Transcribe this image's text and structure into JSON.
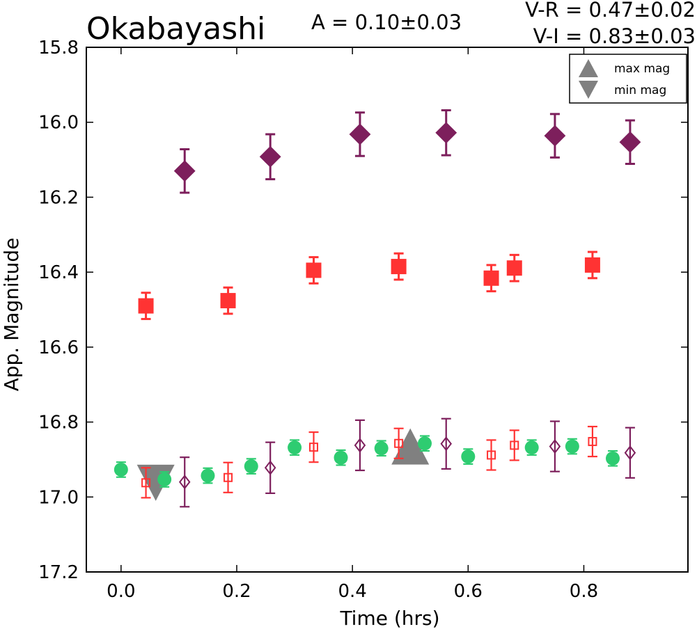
{
  "chart_data": {
    "type": "scatter",
    "title": "Okabayashi",
    "amplitude_text": "A  = 0.10±0.03",
    "color_index_texts": [
      "V-R = 0.47±0.02",
      "V-I  = 0.83±0.03"
    ],
    "xlabel": "Time (hrs)",
    "ylabel": "App. Magnitude",
    "xlim": [
      -0.06,
      0.98
    ],
    "ylim": [
      17.2,
      15.8
    ],
    "y_inverted": true,
    "xticks": [
      "0.0",
      "0.2",
      "0.4",
      "0.6",
      "0.8"
    ],
    "yticks": [
      "15.8",
      "16.0",
      "16.2",
      "16.4",
      "16.6",
      "16.8",
      "17.0",
      "17.2"
    ],
    "grid": false,
    "legend_position": "top-right",
    "legend": [
      {
        "label": "max mag",
        "marker": "triangle-up",
        "color": "#808080"
      },
      {
        "label": "min mag",
        "marker": "triangle-down",
        "color": "#808080"
      }
    ],
    "series": [
      {
        "marker": "circle",
        "color": "#2ecc71",
        "filled": true,
        "x": [
          0.0,
          0.075,
          0.15,
          0.225,
          0.3,
          0.38,
          0.45,
          0.525,
          0.6,
          0.71,
          0.78,
          0.85
        ],
        "y": [
          16.927,
          16.953,
          16.943,
          16.918,
          16.868,
          16.895,
          16.87,
          16.857,
          16.892,
          16.868,
          16.865,
          16.897
        ],
        "err": [
          0.02,
          0.02,
          0.02,
          0.02,
          0.02,
          0.02,
          0.02,
          0.02,
          0.02,
          0.02,
          0.02,
          0.02
        ]
      },
      {
        "marker": "square",
        "color": "#ff3333",
        "filled": false,
        "x": [
          0.043,
          0.185,
          0.333,
          0.48,
          0.64,
          0.68,
          0.815
        ],
        "y": [
          16.962,
          16.948,
          16.867,
          16.857,
          16.888,
          16.862,
          16.852
        ],
        "err": [
          0.04,
          0.04,
          0.04,
          0.04,
          0.04,
          0.04,
          0.04
        ]
      },
      {
        "marker": "diamond",
        "color": "#7d1f5c",
        "filled": false,
        "x": [
          0.11,
          0.258,
          0.413,
          0.562,
          0.75,
          0.88
        ],
        "y": [
          16.96,
          16.922,
          16.862,
          16.858,
          16.865,
          16.882
        ],
        "err": [
          0.066,
          0.068,
          0.067,
          0.067,
          0.067,
          0.067
        ]
      },
      {
        "marker": "square",
        "color": "#ff3333",
        "filled": true,
        "x": [
          0.043,
          0.185,
          0.333,
          0.48,
          0.64,
          0.68,
          0.815
        ],
        "y": [
          16.49,
          16.476,
          16.395,
          16.385,
          16.416,
          16.389,
          16.381
        ],
        "err": [
          0.035,
          0.035,
          0.035,
          0.035,
          0.035,
          0.035,
          0.035
        ]
      },
      {
        "marker": "diamond",
        "color": "#7d1f5c",
        "filled": true,
        "x": [
          0.11,
          0.258,
          0.413,
          0.562,
          0.75,
          0.88
        ],
        "y": [
          16.13,
          16.092,
          16.032,
          16.028,
          16.036,
          16.053
        ],
        "err": [
          0.058,
          0.06,
          0.058,
          0.06,
          0.058,
          0.058
        ]
      }
    ],
    "extrema": [
      {
        "label": "max mag",
        "marker": "triangle-up",
        "x": 0.5,
        "y": 16.865,
        "color": "#808080"
      },
      {
        "label": "min mag",
        "marker": "triangle-down",
        "x": 0.06,
        "y": 16.962,
        "color": "#808080"
      }
    ]
  }
}
